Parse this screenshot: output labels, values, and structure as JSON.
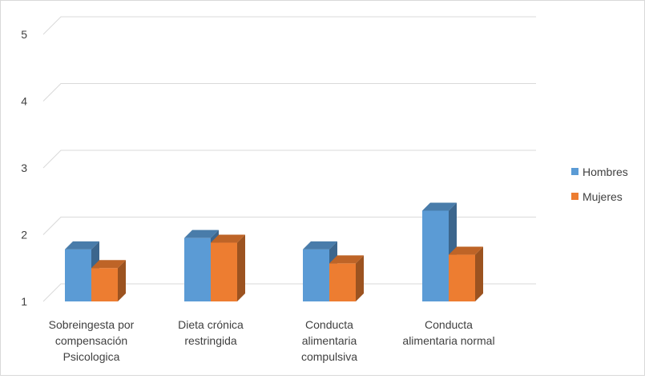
{
  "chart_data": {
    "type": "bar",
    "style": "3d-clustered-column",
    "title": "",
    "xlabel": "",
    "ylabel": "",
    "ylim": [
      1,
      5
    ],
    "yticks": [
      1,
      2,
      3,
      4,
      5
    ],
    "grid": true,
    "legend": "right",
    "categories": [
      [
        "Sobreingesta por",
        "compensación",
        "Psicologica"
      ],
      [
        "Dieta crónica",
        "restringida"
      ],
      [
        "Conducta",
        "alimentaria",
        "compulsiva"
      ],
      [
        "Conducta",
        "alimentaria normal"
      ]
    ],
    "series": [
      {
        "name": "Hombres",
        "color": "#5b9bd5",
        "values": [
          1.78,
          1.95,
          1.78,
          2.36
        ]
      },
      {
        "name": "Mujeres",
        "color": "#ed7d31",
        "values": [
          1.5,
          1.88,
          1.57,
          1.7
        ]
      }
    ]
  }
}
